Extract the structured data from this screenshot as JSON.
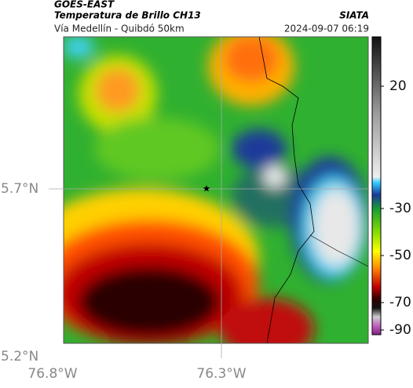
{
  "header": {
    "source": "GOES-EAST",
    "title": "Temperatura de Brillo CH13",
    "brand": "SIATA",
    "subtitle": "Vía Medellín - Quibdó 50km",
    "timestamp": "2024-09-07 06:19"
  },
  "axes": {
    "lat_labels": [
      "5.7°N",
      "5.2°N"
    ],
    "lon_labels": [
      "76.8°W",
      "76.3°W"
    ]
  },
  "colorbar": {
    "ticks": [
      "20",
      "-30",
      "-50",
      "-70",
      "-90"
    ]
  }
}
